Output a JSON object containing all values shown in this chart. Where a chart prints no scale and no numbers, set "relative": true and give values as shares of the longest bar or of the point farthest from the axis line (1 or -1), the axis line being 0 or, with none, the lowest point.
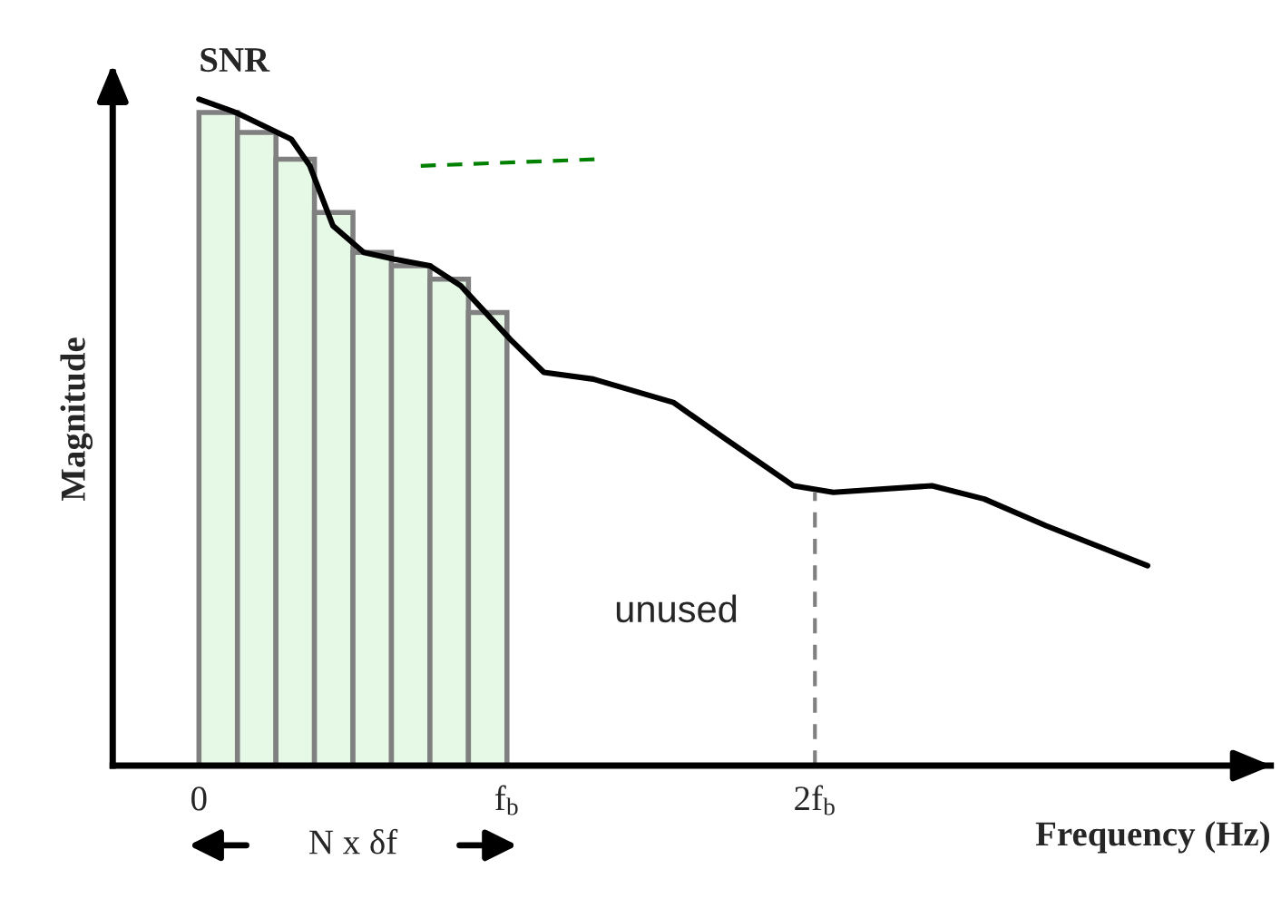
{
  "chart_data": {
    "type": "bar",
    "relative": true,
    "xlabel": "Frequency (Hz)",
    "ylabel": "Magnitude",
    "xlim": [
      -0.28,
      3.48
    ],
    "xticks": [
      {
        "value": 0,
        "label": "0"
      },
      {
        "value": 1,
        "label": "f$_{b}$"
      },
      {
        "value": 2,
        "label": "2f$_{b}$"
      }
    ],
    "tick_labels": "x",
    "grid": false,
    "legend": false,
    "annotations": [
      {
        "text": "SNR",
        "x": 0,
        "y": 1.0
      },
      "unused",
      "N x δf"
    ],
    "series": [
      {
        "type": "bar",
        "color": "#e6f9e6",
        "x": [
          0.0625,
          0.1875,
          0.3125,
          0.4375,
          0.5625,
          0.6875,
          0.8125,
          0.9375
        ],
        "values": [
          0.98,
          0.95,
          0.91,
          0.83,
          0.77,
          0.75,
          0.73,
          0.68
        ]
      },
      {
        "type": "line",
        "color": "#000000",
        "line_style": "solid",
        "x": [
          0.0,
          0.12,
          0.3,
          0.36,
          0.435,
          0.535,
          0.635,
          0.75,
          0.85,
          0.93,
          1.01,
          1.12,
          1.28,
          1.54,
          1.71,
          1.93,
          2.06,
          2.38,
          2.55,
          2.75,
          3.08
        ],
        "values": [
          1.0,
          0.98,
          0.94,
          0.9,
          0.81,
          0.77,
          0.76,
          0.75,
          0.72,
          0.68,
          0.64,
          0.59,
          0.58,
          0.545,
          0.49,
          0.42,
          0.41,
          0.42,
          0.4,
          0.36,
          0.3
        ]
      },
      {
        "type": "line",
        "color": "#008000",
        "line_style": "dashed",
        "x": [
          0.72,
          1.3
        ],
        "values": [
          0.9,
          0.91
        ]
      },
      {
        "type": "line",
        "color": "#808080",
        "line_style": "dashed",
        "x": [
          2,
          2
        ],
        "values": [
          0,
          0.41
        ]
      }
    ]
  }
}
